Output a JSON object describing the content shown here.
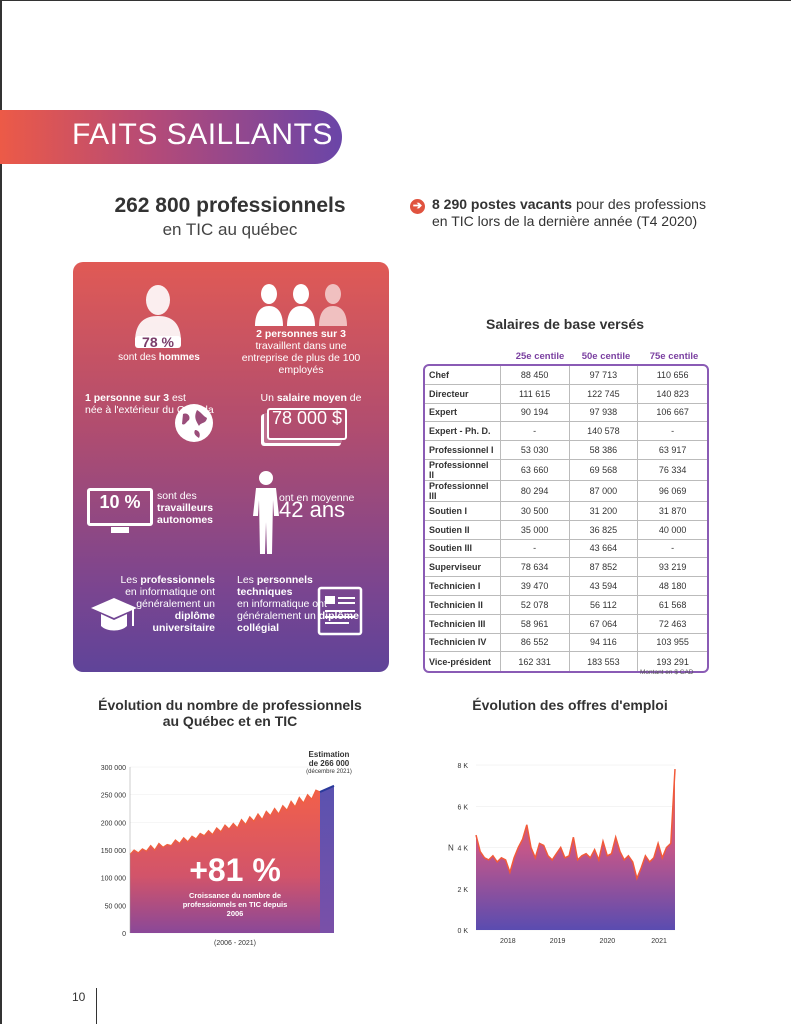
{
  "banner": {
    "title": "FAITS SAILLANTS"
  },
  "headline_left": {
    "big": "262 800 professionnels",
    "sub": "en TIC au québec"
  },
  "headline_right": {
    "bold": "8 290 postes vacants",
    "rest1": " pour des professions",
    "rest2": "en TIC lors de la dernière année (T4 2020)"
  },
  "infobox": {
    "men_pct": "78 %",
    "men_text_a": "sont des ",
    "men_text_b": "hommes",
    "company_bold": "2 personnes sur 3",
    "company_text": "travaillent dans une entreprise de plus de 100 employés",
    "born_bold": "1 personne sur 3",
    "born_text_a": " est",
    "born_text_b": "née à l'extérieur du Canada",
    "salary_text_a": "Un ",
    "salary_bold": "salaire moyen",
    "salary_text_b": " de",
    "salary_value": "78 000 $",
    "auto_pct": "10 %",
    "auto_text_a": "sont des",
    "auto_bold": "travailleurs autonomes",
    "age_text": "ont en moyenne",
    "age_value": "42 ans",
    "univ_a": "Les ",
    "univ_b": "professionnels",
    "univ_c": "en informatique ont généralement un ",
    "univ_d": "diplôme universitaire",
    "coll_a": "Les ",
    "coll_b": "personnels techniques",
    "coll_c": "en informatique ont généralement un ",
    "coll_d": "diplôme collégial"
  },
  "salaries": {
    "title": "Salaires de base versés",
    "headers": [
      "25e centile",
      "50e centile",
      "75e centile"
    ],
    "rows": [
      [
        "Chef",
        "88 450",
        "97 713",
        "110 656"
      ],
      [
        "Directeur",
        "111 615",
        "122 745",
        "140 823"
      ],
      [
        "Expert",
        "90 194",
        "97 938",
        "106 667"
      ],
      [
        "Expert - Ph. D.",
        "-",
        "140 578",
        "-"
      ],
      [
        "Professionnel I",
        "53 030",
        "58 386",
        "63 917"
      ],
      [
        "Professionnel II",
        "63 660",
        "69 568",
        "76 334"
      ],
      [
        "Professionnel III",
        "80 294",
        "87 000",
        "96 069"
      ],
      [
        "Soutien I",
        "30 500",
        "31 200",
        "31 870"
      ],
      [
        "Soutien II",
        "35 000",
        "36 825",
        "40 000"
      ],
      [
        "Soutien III",
        "-",
        "43 664",
        "-"
      ],
      [
        "Superviseur",
        "78 634",
        "87 852",
        "93 219"
      ],
      [
        "Technicien I",
        "39 470",
        "43 594",
        "48 180"
      ],
      [
        "Technicien II",
        "52 078",
        "56 112",
        "61 568"
      ],
      [
        "Technicien III",
        "58 961",
        "67 064",
        "72 463"
      ],
      [
        "Technicien IV",
        "86 552",
        "94 116",
        "103 955"
      ],
      [
        "Vice-président",
        "162 331",
        "183 553",
        "193 291"
      ]
    ],
    "note": "Montant en $ CAD"
  },
  "chart1": {
    "title_1": "Évolution du nombre de professionnels",
    "title_2": "au Québec et en TIC",
    "note_1": "Estimation",
    "note_2": "de 266 000",
    "note_3": "(décembre 2021)",
    "big": "+81 %",
    "caption": "Croissance du nombre de professionnels en TIC depuis 2006",
    "period": "(2006 - 2021)"
  },
  "chart2": {
    "title": "Évolution des offres d'emploi"
  },
  "page": {
    "number": "10"
  },
  "colors": {
    "accent": "#ec5a47",
    "purple": "#6a45a8",
    "table_border": "#8a5bb5"
  },
  "chart_data": [
    {
      "type": "area",
      "title": "Évolution du nombre de professionnels au Québec et en TIC",
      "xlabel": "(2006 - 2021)",
      "ylabel": "",
      "ylim": [
        0,
        300000
      ],
      "yticks": [
        "300 000",
        "250 000",
        "200 000",
        "150 000",
        "100 000",
        "50 000",
        "0"
      ],
      "values": [
        142000,
        150000,
        145000,
        152000,
        148000,
        158000,
        150000,
        162000,
        155000,
        160000,
        158000,
        168000,
        162000,
        172000,
        165000,
        175000,
        170000,
        180000,
        176000,
        185000,
        178000,
        190000,
        183000,
        195000,
        188000,
        198000,
        190000,
        205000,
        196000,
        210000,
        202000,
        215000,
        205000,
        220000,
        212000,
        225000,
        215000,
        230000,
        222000,
        238000,
        228000,
        245000,
        235000,
        250000,
        242000,
        258000,
        255000
      ],
      "estimate": 266000
    },
    {
      "type": "area",
      "title": "Évolution des offres d'emploi",
      "xlabel": "",
      "ylabel": "N",
      "ylim": [
        0,
        8000
      ],
      "yticks": [
        "8 K",
        "6 K",
        "4 K",
        "2 K",
        "0 K"
      ],
      "xticks": [
        "2018",
        "2019",
        "2020",
        "2021"
      ],
      "values": [
        4600,
        3800,
        3500,
        3400,
        3600,
        3300,
        3500,
        3400,
        2800,
        3500,
        4000,
        4400,
        5100,
        4000,
        3500,
        4200,
        4100,
        3600,
        3400,
        3700,
        4000,
        3500,
        3600,
        4500,
        3400,
        3600,
        3700,
        3500,
        3900,
        3400,
        4300,
        3600,
        3700,
        4500,
        3800,
        3400,
        3600,
        3300,
        2500,
        3000,
        3600,
        3300,
        3500,
        4200,
        3500,
        4000,
        4200,
        7800
      ]
    }
  ]
}
